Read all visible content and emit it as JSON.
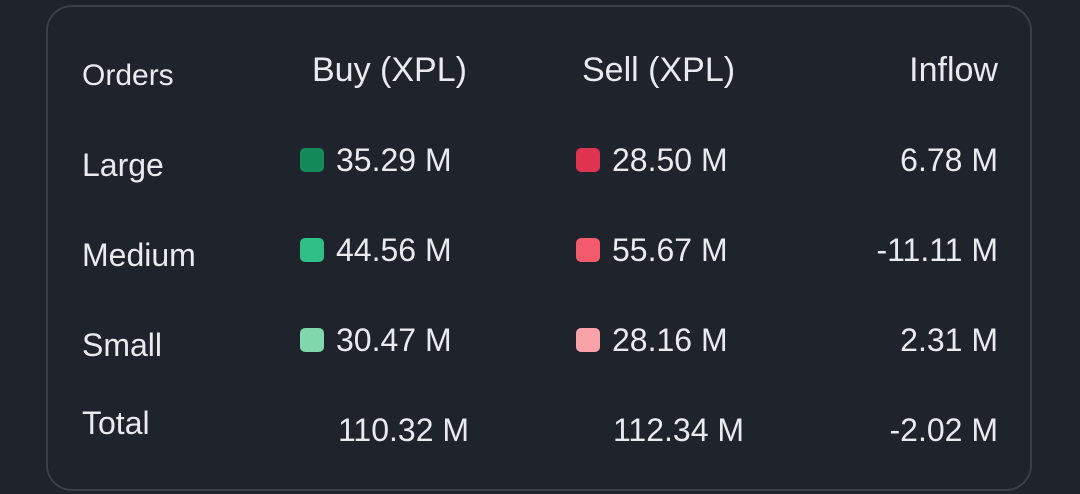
{
  "header": {
    "orders": "Orders",
    "buy": "Buy (XPL)",
    "sell": "Sell (XPL)",
    "inflow": "Inflow"
  },
  "rows": [
    {
      "label": "Large",
      "buy": "35.29 M",
      "sell": "28.50 M",
      "inflow": "6.78 M"
    },
    {
      "label": "Medium",
      "buy": "44.56 M",
      "sell": "55.67 M",
      "inflow": "-11.11 M"
    },
    {
      "label": "Small",
      "buy": "30.47 M",
      "sell": "28.16 M",
      "inflow": "2.31 M"
    }
  ],
  "total": {
    "label": "Total",
    "buy": "110.32 M",
    "sell": "112.34 M",
    "inflow": "-2.02 M"
  },
  "colors": {
    "buy_large": "#138a5a",
    "buy_medium": "#2fc088",
    "buy_small": "#7fd9ac",
    "sell_large": "#e0334f",
    "sell_medium": "#f45b6c",
    "sell_small": "#f9a3a8"
  }
}
